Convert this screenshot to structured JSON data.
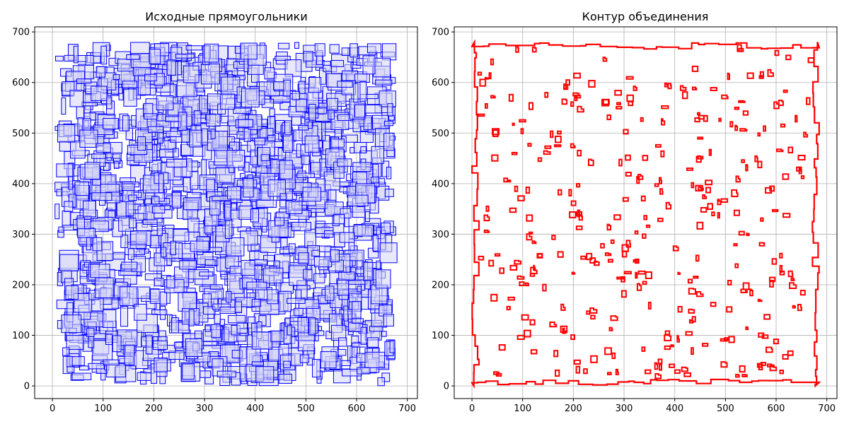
{
  "chart_data": [
    {
      "type": "rectangles",
      "title": "Исходные прямоугольники",
      "xlabel": "",
      "ylabel": "",
      "xlim": [
        -35,
        720
      ],
      "ylim": [
        -25,
        710
      ],
      "xticks": [
        0,
        100,
        200,
        300,
        400,
        500,
        600,
        700
      ],
      "yticks": [
        0,
        100,
        200,
        300,
        400,
        500,
        600,
        700
      ],
      "grid": true,
      "edge_color": "#0000ff",
      "fill_color": "#d6d6f5",
      "rect_count_approx": 1600,
      "rect_region": {
        "x": [
          5,
          680
        ],
        "y": [
          0,
          680
        ]
      },
      "rect_size_range": [
        8,
        40
      ]
    },
    {
      "type": "outline",
      "title": "Контур объединения",
      "xlabel": "",
      "ylabel": "",
      "xlim": [
        -35,
        720
      ],
      "ylim": [
        -25,
        710
      ],
      "xticks": [
        0,
        100,
        200,
        300,
        400,
        500,
        600,
        700
      ],
      "yticks": [
        0,
        100,
        200,
        300,
        400,
        500,
        600,
        700
      ],
      "grid": true,
      "line_color": "#ff0000",
      "outer_boundary_extent": {
        "x": [
          0,
          685
        ],
        "y": [
          0,
          680
        ]
      },
      "hole_count_approx": 320
    }
  ]
}
